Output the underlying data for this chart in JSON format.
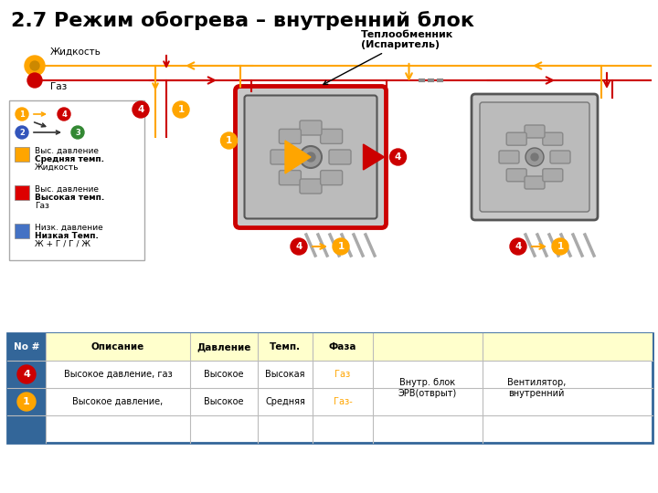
{
  "title": "2.7 Режим обогрева – внутренний блок",
  "title_fontsize": 16,
  "title_color": "#000000",
  "bg_color": "#ffffff",
  "label_zhidkost": "Жидкость",
  "label_gaz": "Газ",
  "label_teploobmennik": "Теплообменник\n(Испаритель)",
  "legend_items": [
    {
      "color": "#FFA500",
      "text1": "Выс. давление",
      "text2": "Средняя темп.",
      "text3": "Жидкость"
    },
    {
      "color": "#DD0000",
      "text1": "Выс. давление",
      "text2": "Высокая темп.",
      "text3": "Газ"
    },
    {
      "color": "#4472C4",
      "text1": "Низк. давление",
      "text2": "Низкая Темп.",
      "text3": "Ж + Г / Г / Ж"
    }
  ],
  "table_header_bg": "#FFFFCC",
  "table_side_bg": "#336699",
  "table_header_color": "#000000",
  "table_row1": [
    "",
    "Высокое давление, газ",
    "Высокое",
    "Высокая",
    "Газ",
    "",
    ""
  ],
  "table_row2": [
    "",
    "Высокое давление,",
    "Высокое",
    "Средняя",
    "Газ-",
    "Внутр. блок\nЭРВ(отврыт)",
    "Вентилятор,\nвнутренний"
  ],
  "table_row1_faza_color": "#FFA500",
  "table_row2_faza_color": "#FFA500",
  "num4_color": "#CC0000",
  "num1_color": "#FFA500",
  "orange_color": "#FFA500",
  "red_color": "#CC0000"
}
